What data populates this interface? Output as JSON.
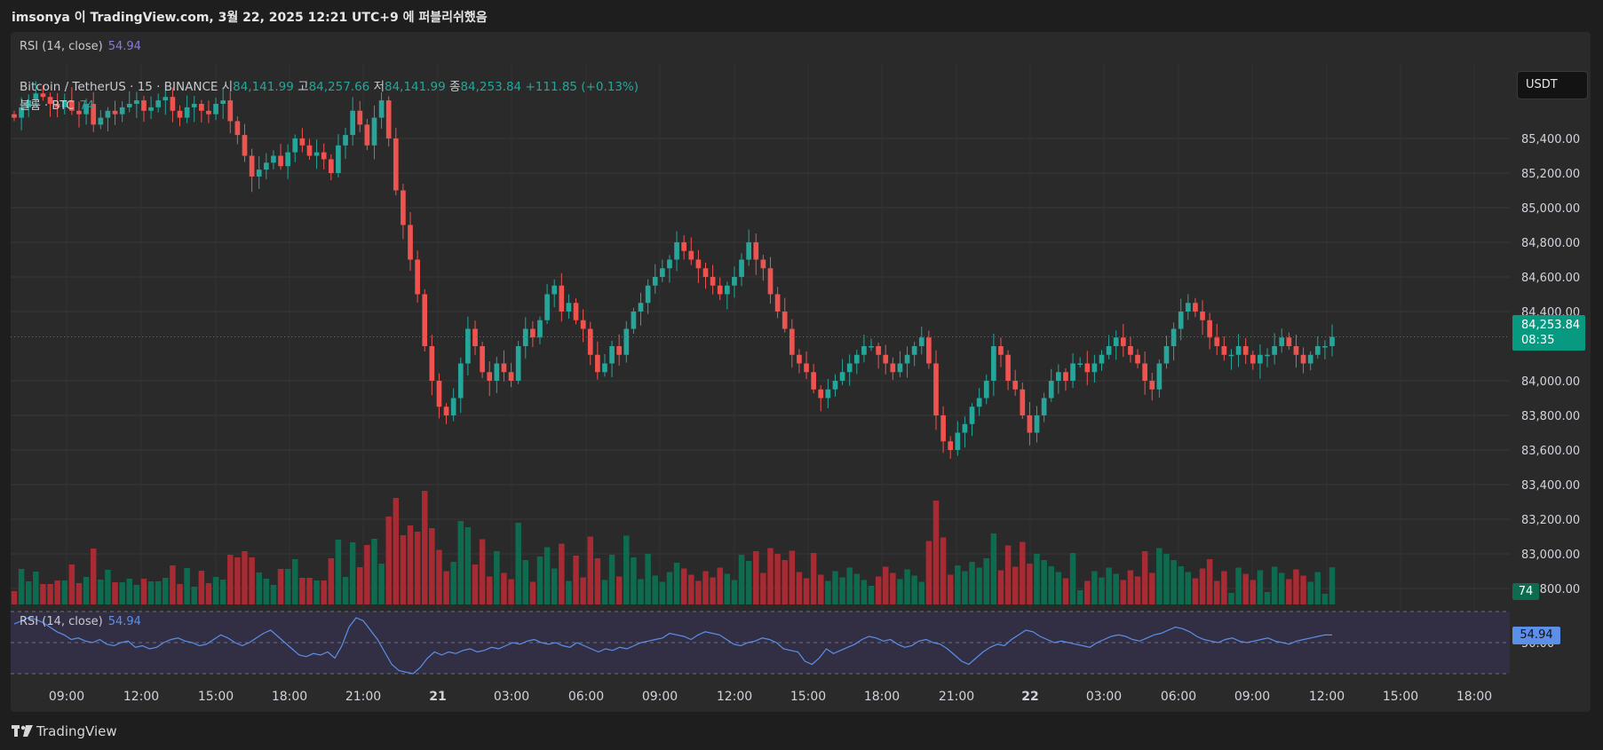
{
  "header": {
    "published": "imsonya 이 TradingView.com, 3월 22, 2025 12:21 UTC+9 에 퍼블리쉬했음"
  },
  "rsi_header": {
    "label": "RSI (14, close)",
    "value": "54.94"
  },
  "legend": {
    "symbol": "Bitcoin / TetherUS · 15 · BINANCE",
    "open_label": "시",
    "open": "84,141.99",
    "high_label": "고",
    "high": "84,257.66",
    "low_label": "저",
    "low": "84,141.99",
    "close_label": "종",
    "close": "84,253.84",
    "change": "+111.85 (+0.13%)",
    "volume_label": "볼륨 · BTC",
    "volume_value": "74"
  },
  "currency_button": "USDT",
  "last_price_tag": {
    "price": "84,253.84",
    "countdown": "08:35"
  },
  "volume_tag": "74",
  "rsi_panel": {
    "label": "RSI (14, close)",
    "value": "54.94",
    "tag": "54.94"
  },
  "footer": {
    "brand": "TradingView"
  },
  "colors": {
    "up": "#26a69a",
    "down": "#ef5350",
    "volume_up": "#0e6b4f",
    "volume_down": "#a82a33",
    "rsi_line": "#5b8fe8",
    "price_line": "#089981"
  },
  "chart_data": [
    {
      "type": "candlestick",
      "title": "Bitcoin / TetherUS · 15 · BINANCE",
      "ylabel": "USDT",
      "y_ticks": [
        "85,400.00",
        "85,200.00",
        "85,000.00",
        "84,800.00",
        "84,600.00",
        "84,400.00",
        "84,000.00",
        "83,800.00",
        "83,600.00",
        "83,400.00",
        "83,200.00",
        "83,000.00",
        "82,800.00"
      ],
      "y_tick_values": [
        85400,
        85200,
        85000,
        84800,
        84600,
        84400,
        84000,
        83800,
        83600,
        83400,
        83200,
        83000,
        82800
      ],
      "x_ticks": [
        "09:00",
        "12:00",
        "15:00",
        "18:00",
        "21:00",
        "21",
        "03:00",
        "06:00",
        "09:00",
        "12:00",
        "15:00",
        "18:00",
        "21:00",
        "22",
        "03:00",
        "06:00",
        "09:00",
        "12:00",
        "15:00",
        "18:00"
      ],
      "last_price": 84253.84,
      "close_series": [
        85520,
        85580,
        85620,
        85660,
        85640,
        85600,
        85580,
        85620,
        85560,
        85540,
        85600,
        85480,
        85520,
        85560,
        85540,
        85580,
        85600,
        85620,
        85560,
        85580,
        85620,
        85640,
        85560,
        85520,
        85580,
        85600,
        85560,
        85540,
        85600,
        85620,
        85500,
        85420,
        85300,
        85180,
        85220,
        85260,
        85300,
        85240,
        85320,
        85400,
        85360,
        85300,
        85320,
        85280,
        85200,
        85360,
        85420,
        85560,
        85480,
        85360,
        85520,
        85620,
        85400,
        85100,
        84900,
        84700,
        84500,
        84200,
        84000,
        83850,
        83800,
        83900,
        84100,
        84300,
        84200,
        84050,
        84000,
        84100,
        84050,
        84000,
        84200,
        84300,
        84250,
        84350,
        84500,
        84550,
        84400,
        84450,
        84350,
        84300,
        84150,
        84050,
        84100,
        84200,
        84150,
        84300,
        84400,
        84450,
        84550,
        84600,
        84650,
        84700,
        84800,
        84750,
        84700,
        84650,
        84600,
        84550,
        84500,
        84550,
        84600,
        84700,
        84800,
        84700,
        84650,
        84500,
        84400,
        84300,
        84150,
        84100,
        84050,
        83950,
        83900,
        83950,
        84000,
        84050,
        84100,
        84150,
        84200,
        84200,
        84150,
        84100,
        84050,
        84100,
        84150,
        84200,
        84250,
        84100,
        83800,
        83650,
        83600,
        83700,
        83750,
        83850,
        83900,
        84000,
        84200,
        84150,
        84000,
        83950,
        83800,
        83700,
        83800,
        83900,
        84000,
        84050,
        84000,
        84100,
        84100,
        84050,
        84100,
        84150,
        84200,
        84250,
        84200,
        84150,
        84100,
        84000,
        83950,
        84100,
        84200,
        84300,
        84400,
        84450,
        84400,
        84350,
        84250,
        84200,
        84150,
        84150,
        84200,
        84150,
        84100,
        84150,
        84150,
        84200,
        84250,
        84200,
        84150,
        84100,
        84150,
        84200,
        84200,
        84253.84
      ],
      "volume_ticks_shown": [
        "74"
      ]
    },
    {
      "type": "line",
      "title": "RSI (14, close)",
      "bands": [
        70,
        50,
        30
      ],
      "y_tick_shown": "50.00",
      "last_value": 54.94,
      "values": [
        62,
        64,
        66,
        65,
        63,
        60,
        57,
        55,
        52,
        53,
        51,
        50,
        52,
        49,
        48,
        50,
        51,
        47,
        48,
        46,
        47,
        50,
        52,
        53,
        51,
        50,
        48,
        49,
        52,
        55,
        53,
        50,
        48,
        50,
        53,
        56,
        58,
        54,
        50,
        46,
        42,
        41,
        43,
        42,
        44,
        40,
        48,
        60,
        66,
        64,
        58,
        52,
        44,
        36,
        32,
        31,
        30,
        34,
        40,
        44,
        42,
        44,
        43,
        45,
        46,
        44,
        45,
        47,
        46,
        48,
        50,
        49,
        51,
        52,
        50,
        49,
        50,
        48,
        47,
        50,
        48,
        46,
        44,
        46,
        45,
        47,
        46,
        48,
        50,
        51,
        52,
        53,
        56,
        55,
        54,
        52,
        55,
        57,
        56,
        55,
        52,
        49,
        48,
        50,
        51,
        53,
        52,
        50,
        46,
        45,
        44,
        38,
        36,
        40,
        46,
        43,
        45,
        47,
        49,
        52,
        54,
        53,
        51,
        52,
        49,
        47,
        48,
        51,
        52,
        50,
        49,
        46,
        42,
        38,
        36,
        40,
        44,
        47,
        49,
        48,
        52,
        55,
        58,
        57,
        54,
        52,
        50,
        51,
        50,
        49,
        48,
        47,
        50,
        52,
        54,
        55,
        54,
        52,
        51,
        53,
        55,
        56,
        58,
        60,
        59,
        57,
        54,
        52,
        51,
        50,
        52,
        53,
        51,
        50,
        51,
        52,
        53,
        51,
        50,
        49,
        51,
        52,
        53,
        54,
        55,
        54.94
      ]
    }
  ]
}
